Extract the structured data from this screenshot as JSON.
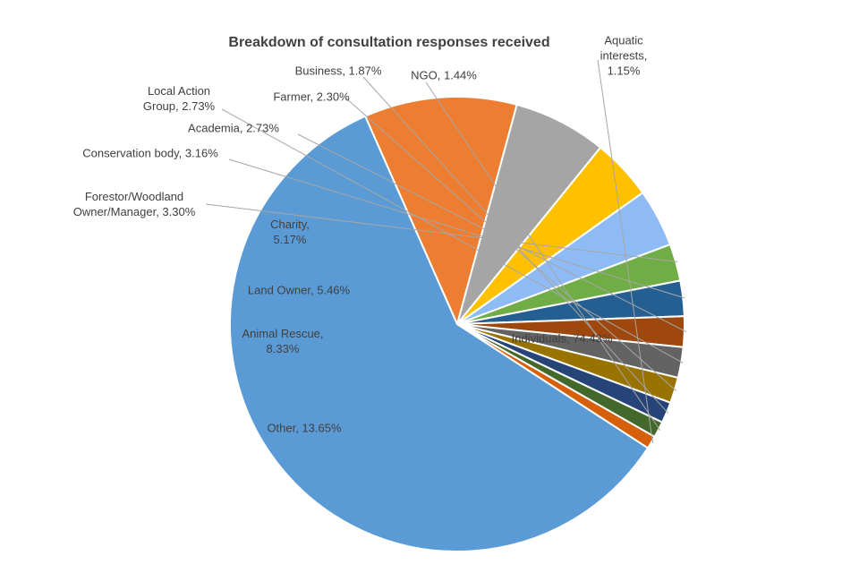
{
  "chart_data": {
    "type": "pie",
    "title": "Breakdown of consultation responses received",
    "slices": [
      {
        "category": "Individuals",
        "value": 74.43,
        "label_lines": [
          "Individuals, 74.43%"
        ],
        "color": "#5B9BD5"
      },
      {
        "category": "Other",
        "value": 13.65,
        "label_lines": [
          "Other, 13.65%"
        ],
        "color": "#ED7D31"
      },
      {
        "category": "Animal Rescue",
        "value": 8.33,
        "label_lines": [
          "Animal Rescue,",
          "8.33%"
        ],
        "color": "#A5A5A5"
      },
      {
        "category": "Land Owner",
        "value": 5.46,
        "label_lines": [
          "Land Owner, 5.46%"
        ],
        "color": "#FFC000"
      },
      {
        "category": "Charity",
        "value": 5.17,
        "label_lines": [
          "Charity,",
          "5.17%"
        ],
        "color": "#8FBBF5"
      },
      {
        "category": "Forestor/Woodland Owner/Manager",
        "value": 3.3,
        "label_lines": [
          "Forestor/Woodland",
          "Owner/Manager, 3.30%"
        ],
        "color": "#70AD47"
      },
      {
        "category": "Conservation body",
        "value": 3.16,
        "label_lines": [
          "Conservation body, 3.16%"
        ],
        "color": "#255E91"
      },
      {
        "category": "Academia",
        "value": 2.73,
        "label_lines": [
          "Academia, 2.73%"
        ],
        "color": "#9E480E"
      },
      {
        "category": "Local Action Group",
        "value": 2.73,
        "label_lines": [
          "Local Action",
          "Group, 2.73%"
        ],
        "color": "#636363"
      },
      {
        "category": "Farmer",
        "value": 2.3,
        "label_lines": [
          "Farmer, 2.30%"
        ],
        "color": "#997300"
      },
      {
        "category": "Business",
        "value": 1.87,
        "label_lines": [
          "Business, 1.87%"
        ],
        "color": "#264478"
      },
      {
        "category": "NGO",
        "value": 1.44,
        "label_lines": [
          "NGO, 1.44%"
        ],
        "color": "#43682B"
      },
      {
        "category": "Aquatic interests",
        "value": 1.15,
        "label_lines": [
          "Aquatic",
          "interests,",
          "1.15%"
        ],
        "color": "#D55F0A"
      }
    ],
    "data_labels": "category, percentage",
    "legend": "none"
  }
}
